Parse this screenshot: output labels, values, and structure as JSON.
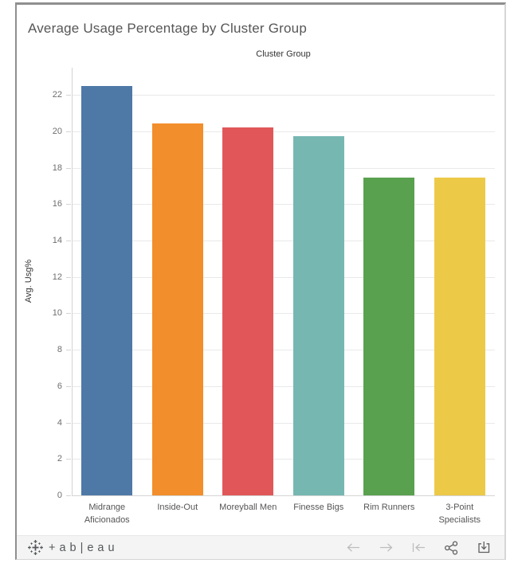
{
  "header": {
    "title": "Average Usage Percentage by Cluster Group"
  },
  "chart_data": {
    "type": "bar",
    "title": "Cluster Group",
    "xlabel": "",
    "ylabel": "Avg. Usg%",
    "categories": [
      "Midrange Aficionados",
      "Inside-Out",
      "Moreyball Men",
      "Finesse Bigs",
      "Rim Runners",
      "3-Point Specialists"
    ],
    "values": [
      22.5,
      20.45,
      20.2,
      19.75,
      17.45,
      17.45
    ],
    "bar_colors": [
      "#4e79a7",
      "#f28e2b",
      "#e15759",
      "#76b7b2",
      "#59a14f",
      "#edc948"
    ],
    "yticks": [
      0,
      2,
      4,
      6,
      8,
      10,
      12,
      14,
      16,
      18,
      20,
      22
    ],
    "ylim": [
      0,
      23.5
    ],
    "grid": "horizontal",
    "legend": "none"
  },
  "footer": {
    "logo_text": "+ab|eau",
    "nav_icons": [
      "undo-arrow",
      "redo-arrow",
      "reset-view",
      "share",
      "download"
    ]
  },
  "colors": {
    "frame_border_dark": "#8f8f8f",
    "frame_border_light": "#d6d6d6",
    "footer_background": "#f4f4f4",
    "nav_disabled": "#bdbdbd",
    "nav_active": "#5f5f5f",
    "gridline": "#e9e9e9",
    "title_text": "#565656",
    "tick_text": "#6e6e6e"
  }
}
